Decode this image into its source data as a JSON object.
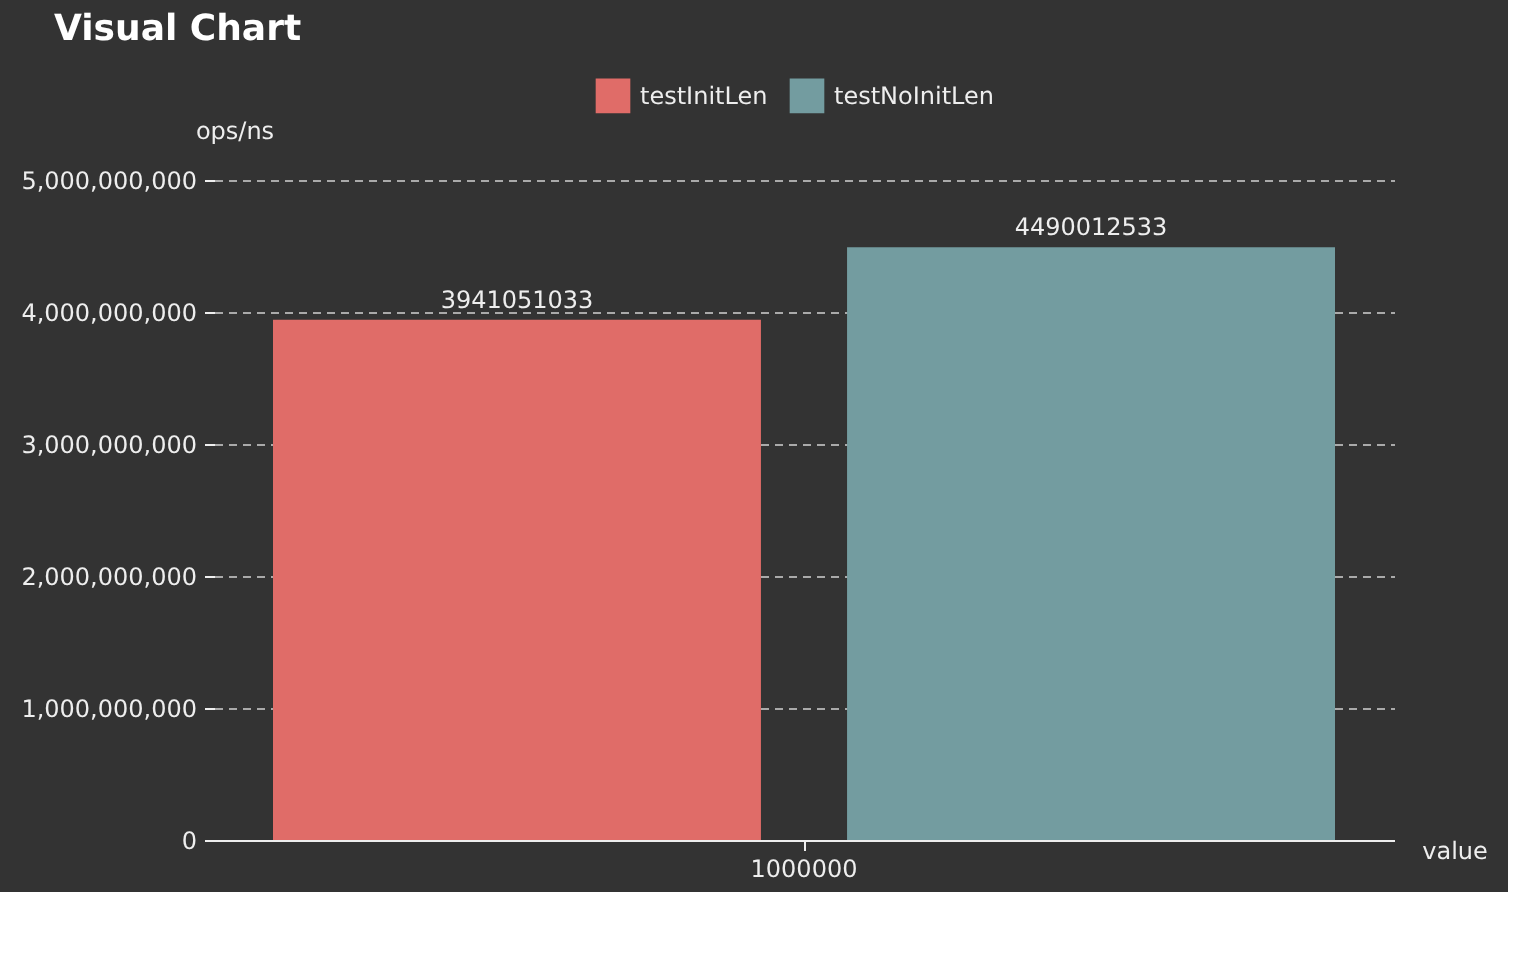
{
  "chart_data": {
    "type": "bar",
    "title": "Visual Chart",
    "xlabel": "value",
    "ylabel": "ops/ns",
    "categories": [
      "1000000"
    ],
    "series": [
      {
        "name": "testInitLen",
        "color": "#e06c68",
        "values": [
          3941051033
        ]
      },
      {
        "name": "testNoInitLen",
        "color": "#739ca0",
        "values": [
          4490012533
        ]
      }
    ],
    "ylim": [
      0,
      5000000000
    ],
    "yticks": [
      0,
      {
        "value": 1000000000,
        "label": "1,000,000,000"
      },
      {
        "value": 2000000000,
        "label": "2,000,000,000"
      },
      {
        "value": 3000000000,
        "label": "3,000,000,000"
      },
      {
        "value": 4000000000,
        "label": "4,000,000,000"
      },
      {
        "value": 5000000000,
        "label": "5,000,000,000"
      }
    ],
    "grid": "y",
    "legend": "top",
    "data_labels": true
  }
}
